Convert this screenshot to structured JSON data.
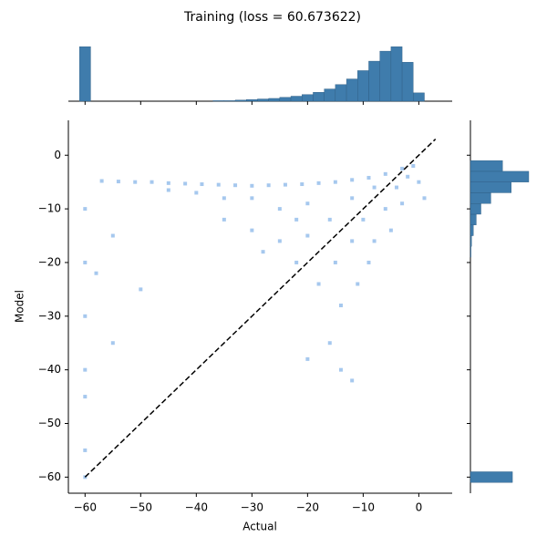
{
  "chart_data": [
    {
      "type": "scatter",
      "title": "Training (loss = 60.673622)",
      "xlabel": "Actual",
      "ylabel": "Model",
      "x": [
        -57,
        -54,
        -51,
        -48,
        -45,
        -42,
        -39,
        -36,
        -33,
        -30,
        -27,
        -24,
        -21,
        -18,
        -15,
        -12,
        -9,
        -6,
        -3,
        -1,
        -45,
        -40,
        -35,
        -35,
        -30,
        -30,
        -28,
        -25,
        -25,
        -22,
        -22,
        -20,
        -20,
        -18,
        -16,
        -15,
        -14,
        -12,
        -12,
        -11,
        -10,
        -9,
        -8,
        -8,
        -6,
        -5,
        -4,
        -3,
        -2,
        0,
        1,
        -16,
        -14,
        -20,
        -12,
        -60,
        -60,
        -60,
        -60,
        -60,
        -60,
        -60,
        -58,
        -55,
        -50,
        -55
      ],
      "y": [
        -4.8,
        -4.9,
        -5,
        -5,
        -5.2,
        -5.3,
        -5.4,
        -5.5,
        -5.6,
        -5.7,
        -5.6,
        -5.5,
        -5.4,
        -5.2,
        -5,
        -4.6,
        -4.2,
        -3.5,
        -2.5,
        -2,
        -6.5,
        -7,
        -8,
        -12,
        -8,
        -14,
        -18,
        -10,
        -16,
        -12,
        -20,
        -9,
        -15,
        -24,
        -12,
        -20,
        -28,
        -8,
        -16,
        -24,
        -12,
        -20,
        -6,
        -16,
        -10,
        -14,
        -6,
        -9,
        -4,
        -5,
        -8,
        -35,
        -40,
        -38,
        -42,
        -10,
        -20,
        -30,
        -40,
        -45,
        -55,
        -60,
        -22,
        -35,
        -25,
        -15
      ],
      "color": "#a6c8ee",
      "reference_line": {
        "x": [
          -60,
          3
        ],
        "y": [
          -60,
          3
        ],
        "color": "#000000",
        "style": "dashed"
      },
      "xlim": [
        -63,
        6
      ],
      "ylim": [
        -63,
        6.5
      ],
      "xticks": [
        {
          "value": -60,
          "label": "−60"
        },
        {
          "value": -50,
          "label": "−50"
        },
        {
          "value": -40,
          "label": "−40"
        },
        {
          "value": -30,
          "label": "−30"
        },
        {
          "value": -20,
          "label": "−20"
        },
        {
          "value": -10,
          "label": "−10"
        },
        0
      ],
      "yticks": [
        {
          "value": -60,
          "label": "−60"
        },
        {
          "value": -50,
          "label": "−50"
        },
        {
          "value": -40,
          "label": "−40"
        },
        {
          "value": -30,
          "label": "−30"
        },
        {
          "value": -20,
          "label": "−20"
        },
        {
          "value": -10,
          "label": "−10"
        },
        0
      ]
    },
    {
      "type": "histogram",
      "orientation": "vertical",
      "color": "#3f7cac",
      "bins": [
        -61,
        -59,
        -57,
        -55,
        -53,
        -51,
        -49,
        -47,
        -45,
        -43,
        -41,
        -39,
        -37,
        -35,
        -33,
        -31,
        -29,
        -27,
        -25,
        -23,
        -21,
        -19,
        -17,
        -15,
        -13,
        -11,
        -9,
        -7,
        -5,
        -3,
        -1,
        1,
        3
      ],
      "counts": [
        98,
        0,
        0,
        0,
        0,
        0,
        0,
        0,
        0,
        0,
        0,
        0,
        1,
        1,
        2,
        3,
        4,
        5,
        7,
        9,
        12,
        16,
        22,
        30,
        40,
        55,
        72,
        90,
        98,
        70,
        15,
        0
      ],
      "xlim": [
        -63,
        6
      ],
      "ylim": [
        0,
        100
      ]
    },
    {
      "type": "histogram",
      "orientation": "horizontal",
      "color": "#3f7cac",
      "bins": [
        -61,
        -59,
        -57,
        -55,
        -53,
        -51,
        -49,
        -47,
        -45,
        -43,
        -41,
        -39,
        -37,
        -35,
        -33,
        -31,
        -29,
        -27,
        -25,
        -23,
        -21,
        -19,
        -17,
        -15,
        -13,
        -11,
        -9,
        -7,
        -5,
        -3,
        -1,
        1
      ],
      "counts": [
        72,
        0,
        0,
        0,
        0,
        0,
        0,
        0,
        0,
        0,
        0,
        0,
        0,
        0,
        0,
        0,
        0,
        0,
        0,
        0,
        0,
        1,
        2,
        5,
        10,
        18,
        35,
        70,
        100,
        55,
        0
      ],
      "ylim": [
        -63,
        6.5
      ],
      "xlim": [
        0,
        100
      ]
    }
  ]
}
